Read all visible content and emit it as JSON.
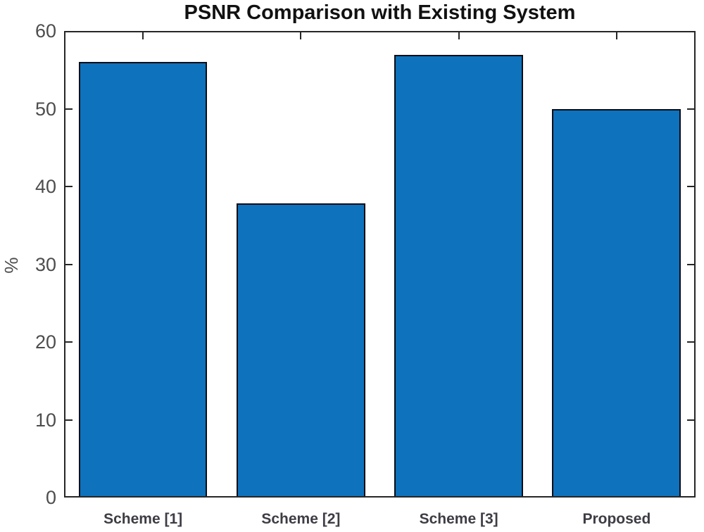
{
  "chart_data": {
    "type": "bar",
    "title": "PSNR Comparison with Existing System",
    "xlabel": "",
    "ylabel": "%",
    "categories": [
      "Scheme [1]",
      "Scheme [2]",
      "Scheme [3]",
      "Proposed"
    ],
    "values": [
      56.0,
      37.8,
      56.9,
      50.0
    ],
    "ylim": [
      0,
      60
    ],
    "yticks": [
      0,
      10,
      20,
      30,
      40,
      50,
      60
    ],
    "grid": false,
    "legend": "none",
    "tick_direction": "in",
    "box": "on",
    "colors": {
      "bar_fill": "#0e72bd",
      "bar_edge": "#0d0d16",
      "axis": "#262626",
      "y_tick_label": "#4d4d4d",
      "x_category_label": "#3d3d44",
      "title": "#111111",
      "background": "#ffffff"
    }
  }
}
